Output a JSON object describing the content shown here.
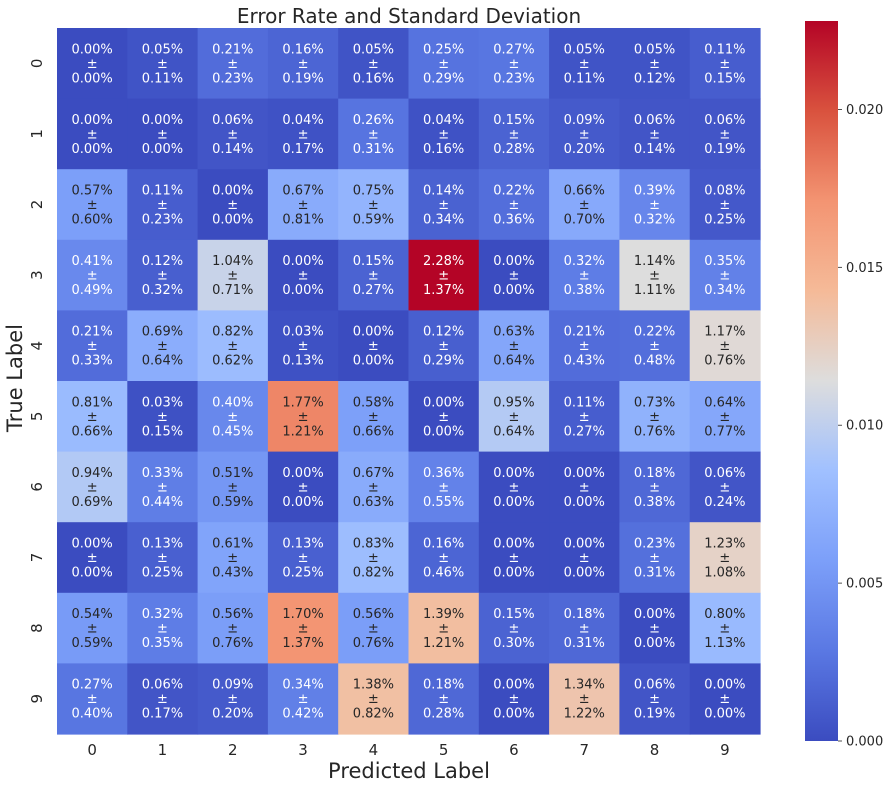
{
  "chart_data": {
    "type": "heatmap",
    "title": "Error Rate and Standard Deviation",
    "xlabel": "Predicted Label",
    "ylabel": "True Label",
    "x_categories": [
      "0",
      "1",
      "2",
      "3",
      "4",
      "5",
      "6",
      "7",
      "8",
      "9"
    ],
    "y_categories": [
      "0",
      "1",
      "2",
      "3",
      "4",
      "5",
      "6",
      "7",
      "8",
      "9"
    ],
    "separator": "±",
    "values": [
      [
        0.0,
        0.0005,
        0.0021,
        0.0016,
        0.0005,
        0.0025,
        0.0027,
        0.0005,
        0.0005,
        0.0011
      ],
      [
        0.0,
        0.0,
        0.0006,
        0.0004,
        0.0026,
        0.0004,
        0.0015,
        0.0009,
        0.0006,
        0.0006
      ],
      [
        0.0057,
        0.0011,
        0.0,
        0.0067,
        0.0075,
        0.0014,
        0.0022,
        0.0066,
        0.0039,
        0.0008
      ],
      [
        0.0041,
        0.0012,
        0.0104,
        0.0,
        0.0015,
        0.0228,
        0.0,
        0.0032,
        0.0114,
        0.0035
      ],
      [
        0.0021,
        0.0069,
        0.0082,
        0.0003,
        0.0,
        0.0012,
        0.0063,
        0.0021,
        0.0022,
        0.0117
      ],
      [
        0.0081,
        0.0003,
        0.004,
        0.0177,
        0.0058,
        0.0,
        0.0095,
        0.0011,
        0.0073,
        0.0064
      ],
      [
        0.0094,
        0.0033,
        0.0051,
        0.0,
        0.0067,
        0.0036,
        0.0,
        0.0,
        0.0018,
        0.0006
      ],
      [
        0.0,
        0.0013,
        0.0061,
        0.0013,
        0.0083,
        0.0016,
        0.0,
        0.0,
        0.0023,
        0.0123
      ],
      [
        0.0054,
        0.0032,
        0.0056,
        0.017,
        0.0056,
        0.0139,
        0.0015,
        0.0018,
        0.0,
        0.008
      ],
      [
        0.0027,
        0.0006,
        0.0009,
        0.0034,
        0.0138,
        0.0018,
        0.0,
        0.0134,
        0.0006,
        0.0
      ]
    ],
    "mean_labels": [
      [
        "0.00%",
        "0.05%",
        "0.21%",
        "0.16%",
        "0.05%",
        "0.25%",
        "0.27%",
        "0.05%",
        "0.05%",
        "0.11%"
      ],
      [
        "0.00%",
        "0.00%",
        "0.06%",
        "0.04%",
        "0.26%",
        "0.04%",
        "0.15%",
        "0.09%",
        "0.06%",
        "0.06%"
      ],
      [
        "0.57%",
        "0.11%",
        "0.00%",
        "0.67%",
        "0.75%",
        "0.14%",
        "0.22%",
        "0.66%",
        "0.39%",
        "0.08%"
      ],
      [
        "0.41%",
        "0.12%",
        "1.04%",
        "0.00%",
        "0.15%",
        "2.28%",
        "0.00%",
        "0.32%",
        "1.14%",
        "0.35%"
      ],
      [
        "0.21%",
        "0.69%",
        "0.82%",
        "0.03%",
        "0.00%",
        "0.12%",
        "0.63%",
        "0.21%",
        "0.22%",
        "1.17%"
      ],
      [
        "0.81%",
        "0.03%",
        "0.40%",
        "1.77%",
        "0.58%",
        "0.00%",
        "0.95%",
        "0.11%",
        "0.73%",
        "0.64%"
      ],
      [
        "0.94%",
        "0.33%",
        "0.51%",
        "0.00%",
        "0.67%",
        "0.36%",
        "0.00%",
        "0.00%",
        "0.18%",
        "0.06%"
      ],
      [
        "0.00%",
        "0.13%",
        "0.61%",
        "0.13%",
        "0.83%",
        "0.16%",
        "0.00%",
        "0.00%",
        "0.23%",
        "1.23%"
      ],
      [
        "0.54%",
        "0.32%",
        "0.56%",
        "1.70%",
        "0.56%",
        "1.39%",
        "0.15%",
        "0.18%",
        "0.00%",
        "0.80%"
      ],
      [
        "0.27%",
        "0.06%",
        "0.09%",
        "0.34%",
        "1.38%",
        "0.18%",
        "0.00%",
        "1.34%",
        "0.06%",
        "0.00%"
      ]
    ],
    "std_labels": [
      [
        "0.00%",
        "0.11%",
        "0.23%",
        "0.19%",
        "0.16%",
        "0.29%",
        "0.23%",
        "0.11%",
        "0.12%",
        "0.15%"
      ],
      [
        "0.00%",
        "0.00%",
        "0.14%",
        "0.17%",
        "0.31%",
        "0.16%",
        "0.28%",
        "0.20%",
        "0.14%",
        "0.19%"
      ],
      [
        "0.60%",
        "0.23%",
        "0.00%",
        "0.81%",
        "0.59%",
        "0.34%",
        "0.36%",
        "0.70%",
        "0.32%",
        "0.25%"
      ],
      [
        "0.49%",
        "0.32%",
        "0.71%",
        "0.00%",
        "0.27%",
        "1.37%",
        "0.00%",
        "0.38%",
        "1.11%",
        "0.34%"
      ],
      [
        "0.33%",
        "0.64%",
        "0.62%",
        "0.13%",
        "0.00%",
        "0.29%",
        "0.64%",
        "0.43%",
        "0.48%",
        "0.76%"
      ],
      [
        "0.66%",
        "0.15%",
        "0.45%",
        "1.21%",
        "0.66%",
        "0.00%",
        "0.64%",
        "0.27%",
        "0.76%",
        "0.77%"
      ],
      [
        "0.69%",
        "0.44%",
        "0.59%",
        "0.00%",
        "0.63%",
        "0.55%",
        "0.00%",
        "0.00%",
        "0.38%",
        "0.24%"
      ],
      [
        "0.00%",
        "0.25%",
        "0.43%",
        "0.25%",
        "0.82%",
        "0.46%",
        "0.00%",
        "0.00%",
        "0.31%",
        "1.08%"
      ],
      [
        "0.59%",
        "0.35%",
        "0.76%",
        "1.37%",
        "0.76%",
        "1.21%",
        "0.30%",
        "0.31%",
        "0.00%",
        "1.13%"
      ],
      [
        "0.40%",
        "0.17%",
        "0.20%",
        "0.42%",
        "0.82%",
        "0.28%",
        "0.00%",
        "1.22%",
        "0.19%",
        "0.00%"
      ]
    ],
    "colorbar": {
      "range": [
        0.0,
        0.0228
      ],
      "ticks": [
        "0.000",
        "0.005",
        "0.010",
        "0.015",
        "0.020"
      ],
      "tick_values": [
        0.0,
        0.005,
        0.01,
        0.015,
        0.02
      ],
      "colormap": "coolwarm"
    },
    "grid": false
  }
}
